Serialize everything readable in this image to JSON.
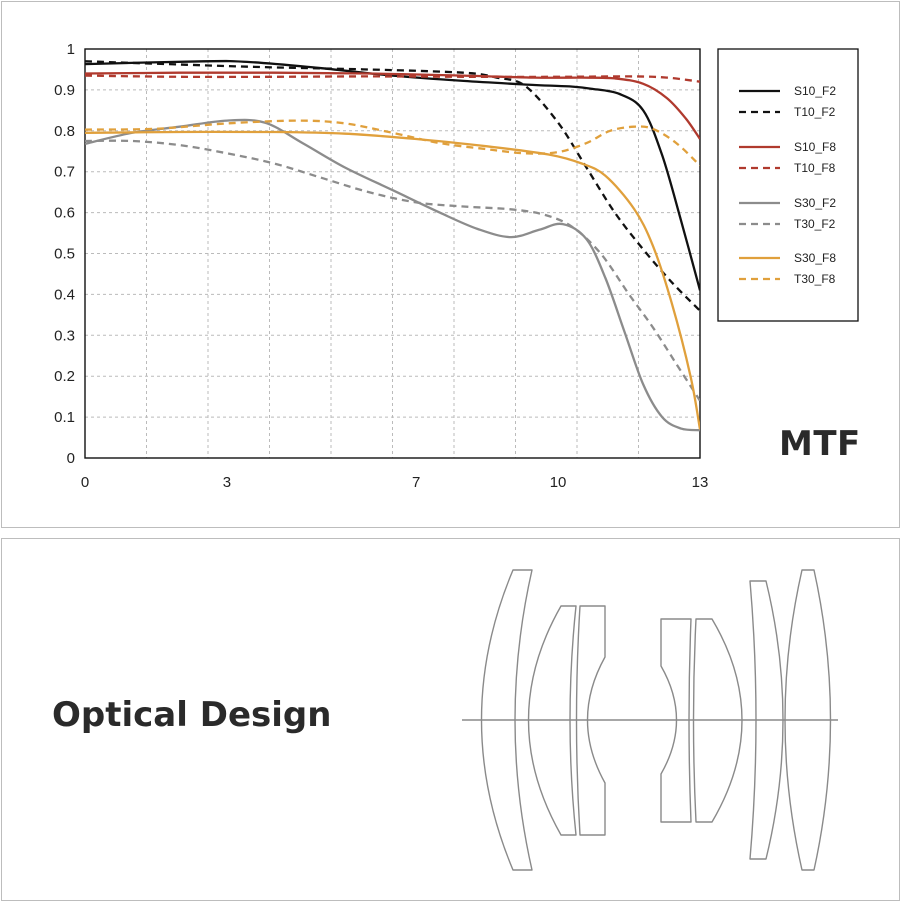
{
  "chart_data": {
    "type": "line",
    "title": "MTF",
    "xlabel": "",
    "ylabel": "",
    "xlim": [
      0,
      13
    ],
    "ylim": [
      0,
      1
    ],
    "xticks": [
      0,
      3,
      7,
      10,
      13
    ],
    "yticks": [
      0,
      0.1,
      0.2,
      0.3,
      0.4,
      0.5,
      0.6,
      0.7,
      0.8,
      0.9,
      1
    ],
    "ytick_labels": [
      "0",
      "0.1",
      "0.2",
      "0.3",
      "0.4",
      "0.5",
      "0.6",
      "0.7",
      "0.8",
      "0.9",
      "1"
    ],
    "grid": true,
    "legend_position": "right",
    "series": [
      {
        "name": "S10_F2",
        "color": "#111111",
        "dash": "solid",
        "x": [
          0,
          2.5,
          3.5,
          5,
          6.5,
          8,
          9.5,
          10.3,
          10.7,
          11.3,
          11.8,
          12.2,
          12.6,
          13
        ],
        "y": [
          0.963,
          0.97,
          0.968,
          0.953,
          0.935,
          0.922,
          0.912,
          0.908,
          0.903,
          0.89,
          0.85,
          0.74,
          0.58,
          0.41
        ]
      },
      {
        "name": "T10_F2",
        "color": "#111111",
        "dash": "dashed",
        "x": [
          0,
          2,
          4,
          6,
          8,
          8.7,
          9.3,
          10,
          10.6,
          11.2,
          11.8,
          12.4,
          13
        ],
        "y": [
          0.97,
          0.962,
          0.955,
          0.95,
          0.942,
          0.93,
          0.91,
          0.82,
          0.71,
          0.6,
          0.51,
          0.43,
          0.36
        ]
      },
      {
        "name": "S10_F8",
        "color": "#b03a2e",
        "dash": "solid",
        "x": [
          0,
          2,
          4,
          6,
          8,
          9.5,
          10.5,
          11.2,
          11.8,
          12.3,
          12.7,
          13
        ],
        "y": [
          0.94,
          0.942,
          0.942,
          0.94,
          0.935,
          0.93,
          0.93,
          0.928,
          0.915,
          0.88,
          0.83,
          0.78
        ]
      },
      {
        "name": "T10_F8",
        "color": "#b03a2e",
        "dash": "dashed",
        "x": [
          0,
          2,
          4,
          6,
          8,
          10,
          11.5,
          12.3,
          13
        ],
        "y": [
          0.935,
          0.932,
          0.932,
          0.933,
          0.932,
          0.932,
          0.933,
          0.93,
          0.92
        ]
      },
      {
        "name": "S30_F2",
        "color": "#8c8c8c",
        "dash": "solid",
        "x": [
          0,
          1,
          2,
          3,
          3.8,
          4.6,
          5.5,
          6.5,
          7.5,
          8.3,
          9,
          9.6,
          10.1,
          10.6,
          11,
          11.4,
          11.8,
          12.2,
          12.6,
          13
        ],
        "y": [
          0.768,
          0.795,
          0.81,
          0.825,
          0.82,
          0.77,
          0.71,
          0.655,
          0.6,
          0.56,
          0.54,
          0.558,
          0.572,
          0.535,
          0.44,
          0.31,
          0.18,
          0.1,
          0.072,
          0.068
        ]
      },
      {
        "name": "T30_F2",
        "color": "#8c8c8c",
        "dash": "dashed",
        "x": [
          0,
          1,
          2,
          3,
          4,
          5,
          6,
          7,
          8,
          9,
          9.7,
          10.3,
          10.9,
          11.5,
          12,
          12.5,
          13
        ],
        "y": [
          0.775,
          0.775,
          0.765,
          0.745,
          0.72,
          0.685,
          0.65,
          0.625,
          0.615,
          0.608,
          0.595,
          0.565,
          0.5,
          0.4,
          0.32,
          0.23,
          0.14
        ]
      },
      {
        "name": "S30_F8",
        "color": "#e0a03c",
        "dash": "solid",
        "x": [
          0,
          2,
          4,
          5.5,
          7,
          8.5,
          9.8,
          10.5,
          11,
          11.6,
          12,
          12.4,
          12.8,
          13
        ],
        "y": [
          0.795,
          0.797,
          0.797,
          0.793,
          0.78,
          0.762,
          0.742,
          0.72,
          0.69,
          0.61,
          0.52,
          0.38,
          0.2,
          0.07
        ]
      },
      {
        "name": "T30_F8",
        "color": "#e0a03c",
        "dash": "dashed",
        "x": [
          0,
          1.5,
          3,
          4.5,
          5.5,
          6.5,
          7.5,
          8.5,
          9.3,
          10,
          10.6,
          11.1,
          11.6,
          12,
          12.5,
          13
        ],
        "y": [
          0.803,
          0.805,
          0.818,
          0.825,
          0.818,
          0.795,
          0.77,
          0.755,
          0.745,
          0.748,
          0.77,
          0.8,
          0.81,
          0.805,
          0.77,
          0.715
        ]
      }
    ]
  },
  "optics": {
    "title": "Optical Design"
  },
  "colors": {
    "panel_border": "#bdbdbd",
    "grid": "#bbbbbb",
    "lens_stroke": "#8a8a8a"
  }
}
